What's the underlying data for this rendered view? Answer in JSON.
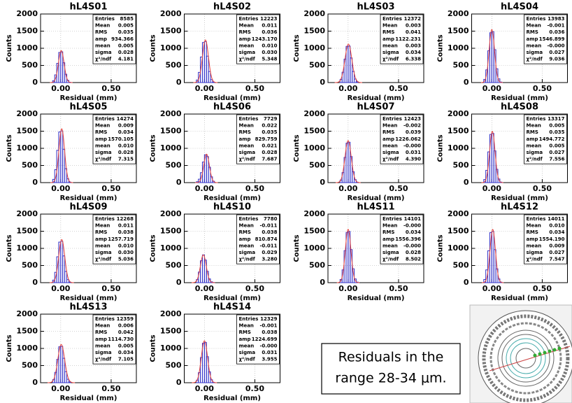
{
  "chart_data": [
    {
      "type": "histogram",
      "title": "hL4S01",
      "xlabel": "Residual (mm)",
      "ylabel": "Counts",
      "bins": [
        -0.08,
        -0.06,
        -0.04,
        -0.02,
        0,
        0.02,
        0.04,
        0.06,
        0.08,
        0.1
      ],
      "values": [
        56,
        224,
        560,
        878,
        897,
        579,
        243,
        65,
        9
      ],
      "color": "#3030c8",
      "fit_color": "#e8413a",
      "xlim": [
        -0.2,
        0.75
      ],
      "ylim": [
        0,
        2000
      ],
      "xticks": [
        {
          "value": 0,
          "label": "0.00"
        },
        {
          "value": 0.5,
          "label": "0.50"
        }
      ],
      "yticks": [
        0,
        500,
        1000,
        1500,
        2000
      ],
      "grid": true,
      "stats": {
        "names": [
          "Entries",
          "Mean",
          "RMS",
          "amp",
          "mean",
          "sigma",
          "χ²/ndf"
        ],
        "values": [
          "8585",
          "0.005",
          "0.035",
          "934.366",
          "0.005",
          "0.028",
          "4.181"
        ]
      }
    },
    {
      "type": "histogram",
      "title": "hL4S02",
      "xlabel": "Residual (mm)",
      "ylabel": "Counts",
      "bins": [
        -0.08,
        -0.06,
        -0.04,
        -0.02,
        0,
        0.02,
        0.04,
        0.06,
        0.08,
        0.1
      ],
      "values": [
        75,
        298,
        746,
        1168,
        1193,
        771,
        323,
        87,
        12
      ],
      "color": "#3030c8",
      "fit_color": "#e8413a",
      "xlim": [
        -0.2,
        0.75
      ],
      "ylim": [
        0,
        2000
      ],
      "xticks": [
        {
          "value": 0,
          "label": "0.00"
        },
        {
          "value": 0.5,
          "label": "0.50"
        }
      ],
      "yticks": [
        0,
        500,
        1000,
        1500,
        2000
      ],
      "grid": true,
      "stats": {
        "names": [
          "Entries",
          "Mean",
          "RMS",
          "amp",
          "mean",
          "sigma",
          "χ²/ndf"
        ],
        "values": [
          "12223",
          "0.011",
          "0.036",
          "1243.170",
          "0.010",
          "0.030",
          "5.348"
        ]
      }
    },
    {
      "type": "histogram",
      "title": "hL4S03",
      "xlabel": "Residual (mm)",
      "ylabel": "Counts",
      "bins": [
        -0.08,
        -0.06,
        -0.04,
        -0.02,
        0,
        0.02,
        0.04,
        0.06,
        0.08,
        0.1
      ],
      "values": [
        90,
        303,
        685,
        1055,
        1066,
        718,
        325,
        101,
        22
      ],
      "color": "#3030c8",
      "fit_color": "#e8413a",
      "xlim": [
        -0.2,
        0.75
      ],
      "ylim": [
        0,
        2000
      ],
      "xticks": [
        {
          "value": 0,
          "label": "0.00"
        },
        {
          "value": 0.5,
          "label": "0.50"
        }
      ],
      "yticks": [
        0,
        500,
        1000,
        1500,
        2000
      ],
      "grid": true,
      "stats": {
        "names": [
          "Entries",
          "Mean",
          "RMS",
          "amp",
          "mean",
          "sigma",
          "χ²/ndf"
        ],
        "values": [
          "12372",
          "0.003",
          "0.041",
          "1122.231",
          "0.003",
          "0.034",
          "6.338"
        ]
      }
    },
    {
      "type": "histogram",
      "title": "hL4S04",
      "xlabel": "Residual (mm)",
      "ylabel": "Counts",
      "bins": [
        -0.08,
        -0.06,
        -0.04,
        -0.02,
        0,
        0.02,
        0.04,
        0.06,
        0.08,
        0.1
      ],
      "values": [
        93,
        371,
        928,
        1454,
        1485,
        959,
        402,
        108,
        15
      ],
      "color": "#3030c8",
      "fit_color": "#e8413a",
      "xlim": [
        -0.2,
        0.75
      ],
      "ylim": [
        0,
        2000
      ],
      "xticks": [
        {
          "value": 0,
          "label": "0.00"
        },
        {
          "value": 0.5,
          "label": "0.50"
        }
      ],
      "yticks": [
        0,
        500,
        1000,
        1500,
        2000
      ],
      "grid": true,
      "stats": {
        "names": [
          "Entries",
          "Mean",
          "RMS",
          "amp",
          "mean",
          "sigma",
          "χ²/ndf"
        ],
        "values": [
          "13983",
          "-0.001",
          "0.036",
          "1546.899",
          "-0.000",
          "0.027",
          "9.036"
        ]
      }
    },
    {
      "type": "histogram",
      "title": "hL4S05",
      "xlabel": "Residual (mm)",
      "ylabel": "Counts",
      "bins": [
        -0.08,
        -0.06,
        -0.04,
        -0.02,
        0,
        0.02,
        0.04,
        0.06,
        0.08,
        0.1
      ],
      "values": [
        94,
        377,
        942,
        1476,
        1507,
        973,
        408,
        110,
        16
      ],
      "color": "#3030c8",
      "fit_color": "#e8413a",
      "xlim": [
        -0.2,
        0.75
      ],
      "ylim": [
        0,
        2000
      ],
      "xticks": [
        {
          "value": 0,
          "label": "0.00"
        },
        {
          "value": 0.5,
          "label": "0.50"
        }
      ],
      "yticks": [
        0,
        500,
        1000,
        1500,
        2000
      ],
      "grid": true,
      "stats": {
        "names": [
          "Entries",
          "Mean",
          "RMS",
          "amp",
          "mean",
          "sigma",
          "χ²/ndf"
        ],
        "values": [
          "14274",
          "0.009",
          "0.034",
          "1570.105",
          "0.010",
          "0.028",
          "7.315"
        ]
      }
    },
    {
      "type": "histogram",
      "title": "hL4S06",
      "xlabel": "Residual (mm)",
      "ylabel": "Counts",
      "bins": [
        -0.08,
        -0.06,
        -0.04,
        -0.02,
        0,
        0.02,
        0.04,
        0.06,
        0.08,
        0.1
      ],
      "values": [
        25,
        100,
        290,
        600,
        810,
        760,
        450,
        170,
        40
      ],
      "color": "#3030c8",
      "fit_color": "#e8413a",
      "xlim": [
        -0.2,
        0.75
      ],
      "ylim": [
        0,
        2000
      ],
      "xticks": [
        {
          "value": 0,
          "label": "0.00"
        },
        {
          "value": 0.5,
          "label": "0.50"
        }
      ],
      "yticks": [
        0,
        500,
        1000,
        1500,
        2000
      ],
      "grid": true,
      "stats": {
        "names": [
          "Entries",
          "Mean",
          "RMS",
          "amp",
          "mean",
          "sigma",
          "χ²/ndf"
        ],
        "values": [
          "7729",
          "0.022",
          "0.035",
          "829.759",
          "0.021",
          "0.028",
          "7.687"
        ]
      }
    },
    {
      "type": "histogram",
      "title": "hL4S07",
      "xlabel": "Residual (mm)",
      "ylabel": "Counts",
      "bins": [
        -0.08,
        -0.06,
        -0.04,
        -0.02,
        0,
        0.02,
        0.04,
        0.06,
        0.08,
        0.1
      ],
      "values": [
        74,
        294,
        736,
        1152,
        1177,
        760,
        319,
        86,
        12
      ],
      "color": "#3030c8",
      "fit_color": "#e8413a",
      "xlim": [
        -0.2,
        0.75
      ],
      "ylim": [
        0,
        2000
      ],
      "xticks": [
        {
          "value": 0,
          "label": "0.00"
        },
        {
          "value": 0.5,
          "label": "0.50"
        }
      ],
      "yticks": [
        0,
        500,
        1000,
        1500,
        2000
      ],
      "grid": true,
      "stats": {
        "names": [
          "Entries",
          "Mean",
          "RMS",
          "amp",
          "mean",
          "sigma",
          "χ²/ndf"
        ],
        "values": [
          "12423",
          "-0.002",
          "0.039",
          "1226.062",
          "-0.000",
          "0.031",
          "4.390"
        ]
      }
    },
    {
      "type": "histogram",
      "title": "hL4S08",
      "xlabel": "Residual (mm)",
      "ylabel": "Counts",
      "bins": [
        -0.08,
        -0.06,
        -0.04,
        -0.02,
        0,
        0.02,
        0.04,
        0.06,
        0.08,
        0.1
      ],
      "values": [
        90,
        359,
        897,
        1405,
        1435,
        927,
        389,
        105,
        15
      ],
      "color": "#3030c8",
      "fit_color": "#e8413a",
      "xlim": [
        -0.2,
        0.75
      ],
      "ylim": [
        0,
        2000
      ],
      "xticks": [
        {
          "value": 0,
          "label": "0.00"
        },
        {
          "value": 0.5,
          "label": "0.50"
        }
      ],
      "yticks": [
        0,
        500,
        1000,
        1500,
        2000
      ],
      "grid": true,
      "stats": {
        "names": [
          "Entries",
          "Mean",
          "RMS",
          "amp",
          "mean",
          "sigma",
          "χ²/ndf"
        ],
        "values": [
          "13317",
          "0.005",
          "0.035",
          "1494.772",
          "0.005",
          "0.027",
          "7.556"
        ]
      }
    },
    {
      "type": "histogram",
      "title": "hL4S09",
      "xlabel": "Residual (mm)",
      "ylabel": "Counts",
      "bins": [
        -0.08,
        -0.06,
        -0.04,
        -0.02,
        0,
        0.02,
        0.04,
        0.06,
        0.08,
        0.1
      ],
      "values": [
        75,
        302,
        755,
        1183,
        1207,
        780,
        327,
        88,
        13
      ],
      "color": "#3030c8",
      "fit_color": "#e8413a",
      "xlim": [
        -0.2,
        0.75
      ],
      "ylim": [
        0,
        2000
      ],
      "xticks": [
        {
          "value": 0,
          "label": "0.00"
        },
        {
          "value": 0.5,
          "label": "0.50"
        }
      ],
      "yticks": [
        0,
        500,
        1000,
        1500,
        2000
      ],
      "grid": true,
      "stats": {
        "names": [
          "Entries",
          "Mean",
          "RMS",
          "amp",
          "mean",
          "sigma",
          "χ²/ndf"
        ],
        "values": [
          "12268",
          "0.011",
          "0.038",
          "1257.719",
          "0.010",
          "0.030",
          "5.036"
        ]
      }
    },
    {
      "type": "histogram",
      "title": "hL4S10",
      "xlabel": "Residual (mm)",
      "ylabel": "Counts",
      "bins": [
        -0.08,
        -0.06,
        -0.04,
        -0.02,
        0,
        0.02,
        0.04,
        0.06,
        0.08,
        0.1
      ],
      "values": [
        90,
        310,
        640,
        810,
        660,
        330,
        110,
        25,
        5
      ],
      "color": "#3030c8",
      "fit_color": "#e8413a",
      "xlim": [
        -0.2,
        0.75
      ],
      "ylim": [
        0,
        2000
      ],
      "xticks": [
        {
          "value": 0,
          "label": "0.00"
        },
        {
          "value": 0.5,
          "label": "0.50"
        }
      ],
      "yticks": [
        0,
        500,
        1000,
        1500,
        2000
      ],
      "grid": true,
      "stats": {
        "names": [
          "Entries",
          "Mean",
          "RMS",
          "amp",
          "mean",
          "sigma",
          "χ²/ndf"
        ],
        "values": [
          "7780",
          "-0.011",
          "0.038",
          "810.874",
          "-0.011",
          "0.029",
          "3.280"
        ]
      }
    },
    {
      "type": "histogram",
      "title": "hL4S11",
      "xlabel": "Residual (mm)",
      "ylabel": "Counts",
      "bins": [
        -0.08,
        -0.06,
        -0.04,
        -0.02,
        0,
        0.02,
        0.04,
        0.06,
        0.08,
        0.1
      ],
      "values": [
        93,
        373,
        934,
        1463,
        1494,
        965,
        405,
        109,
        16
      ],
      "color": "#3030c8",
      "fit_color": "#e8413a",
      "xlim": [
        -0.2,
        0.75
      ],
      "ylim": [
        0,
        2000
      ],
      "xticks": [
        {
          "value": 0,
          "label": "0.00"
        },
        {
          "value": 0.5,
          "label": "0.50"
        }
      ],
      "yticks": [
        0,
        500,
        1000,
        1500,
        2000
      ],
      "grid": true,
      "stats": {
        "names": [
          "Entries",
          "Mean",
          "RMS",
          "amp",
          "mean",
          "sigma",
          "χ²/ndf"
        ],
        "values": [
          "14101",
          "-0.000",
          "0.034",
          "1556.396",
          "-0.000",
          "0.028",
          "8.502"
        ]
      }
    },
    {
      "type": "histogram",
      "title": "hL4S12",
      "xlabel": "Residual (mm)",
      "ylabel": "Counts",
      "bins": [
        -0.08,
        -0.06,
        -0.04,
        -0.02,
        0,
        0.02,
        0.04,
        0.06,
        0.08,
        0.1
      ],
      "values": [
        93,
        373,
        932,
        1461,
        1492,
        963,
        404,
        109,
        16
      ],
      "color": "#3030c8",
      "fit_color": "#e8413a",
      "xlim": [
        -0.2,
        0.75
      ],
      "ylim": [
        0,
        2000
      ],
      "xticks": [
        {
          "value": 0,
          "label": "0.00"
        },
        {
          "value": 0.5,
          "label": "0.50"
        }
      ],
      "yticks": [
        0,
        500,
        1000,
        1500,
        2000
      ],
      "grid": true,
      "stats": {
        "names": [
          "Entries",
          "Mean",
          "RMS",
          "amp",
          "mean",
          "sigma",
          "χ²/ndf"
        ],
        "values": [
          "14011",
          "0.010",
          "0.034",
          "1554.190",
          "0.009",
          "0.027",
          "7.547"
        ]
      }
    },
    {
      "type": "histogram",
      "title": "hL4S13",
      "xlabel": "Residual (mm)",
      "ylabel": "Counts",
      "bins": [
        -0.08,
        -0.06,
        -0.04,
        -0.02,
        0,
        0.02,
        0.04,
        0.06,
        0.08,
        0.1
      ],
      "values": [
        89,
        301,
        680,
        1048,
        1059,
        713,
        323,
        100,
        22
      ],
      "color": "#3030c8",
      "fit_color": "#e8413a",
      "xlim": [
        -0.2,
        0.75
      ],
      "ylim": [
        0,
        2000
      ],
      "xticks": [
        {
          "value": 0,
          "label": "0.00"
        },
        {
          "value": 0.5,
          "label": "0.50"
        }
      ],
      "yticks": [
        0,
        500,
        1000,
        1500,
        2000
      ],
      "grid": true,
      "stats": {
        "names": [
          "Entries",
          "Mean",
          "RMS",
          "amp",
          "mean",
          "sigma",
          "χ²/ndf"
        ],
        "values": [
          "12359",
          "0.006",
          "0.042",
          "1114.730",
          "0.005",
          "0.034",
          "7.105"
        ]
      }
    },
    {
      "type": "histogram",
      "title": "hL4S14",
      "xlabel": "Residual (mm)",
      "ylabel": "Counts",
      "bins": [
        -0.08,
        -0.06,
        -0.04,
        -0.02,
        0,
        0.02,
        0.04,
        0.06,
        0.08,
        0.1
      ],
      "values": [
        74,
        294,
        735,
        1151,
        1176,
        760,
        319,
        86,
        12
      ],
      "color": "#3030c8",
      "fit_color": "#e8413a",
      "xlim": [
        -0.2,
        0.75
      ],
      "ylim": [
        0,
        2000
      ],
      "xticks": [
        {
          "value": 0,
          "label": "0.00"
        },
        {
          "value": 0.5,
          "label": "0.50"
        }
      ],
      "yticks": [
        0,
        500,
        1000,
        1500,
        2000
      ],
      "grid": true,
      "stats": {
        "names": [
          "Entries",
          "Mean",
          "RMS",
          "amp",
          "mean",
          "sigma",
          "χ²/ndf"
        ],
        "values": [
          "12329",
          "-0.001",
          "0.038",
          "1224.699",
          "-0.000",
          "0.031",
          "3.955"
        ]
      }
    }
  ],
  "text_box": {
    "lines": [
      "Residuals in the",
      "range 28-34 μm."
    ]
  }
}
